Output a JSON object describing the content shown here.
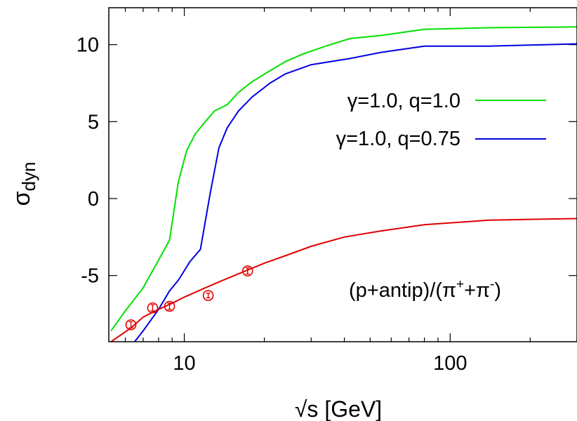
{
  "chart_data": {
    "type": "line",
    "xlabel": "√s [GeV]",
    "ylabel": "σ",
    "ylabel_sub": "dyn",
    "xscale": "log",
    "xlim": [
      5.2,
      300
    ],
    "ylim": [
      -9.3,
      12.4
    ],
    "x_ticks": [
      {
        "value": 10,
        "label": "10"
      },
      {
        "value": 100,
        "label": "100"
      }
    ],
    "y_ticks": [
      {
        "value": 10,
        "label": "10"
      },
      {
        "value": 5,
        "label": "5"
      },
      {
        "value": 0,
        "label": "0"
      },
      {
        "value": -5,
        "label": "-5"
      }
    ],
    "grid": false,
    "legend_position": "top-right",
    "annotation": {
      "prefix": "(p+antip)/(π",
      "sup1": "+",
      "middle": "+π",
      "sup2": "-",
      "suffix": ")"
    },
    "series": [
      {
        "name": "γ=1.0, q=1.0",
        "color": "#00e000",
        "in_legend": true,
        "x": [
          5.3,
          6.0,
          7.0,
          8.0,
          8.8,
          9.5,
          10.2,
          11.0,
          12.0,
          13.0,
          14.5,
          16.0,
          18.0,
          21.0,
          24.0,
          28.0,
          34.0,
          42.0,
          55.0,
          80.0,
          140.0,
          300.0
        ],
        "y": [
          -8.6,
          -7.3,
          -5.8,
          -4.0,
          -2.7,
          1.1,
          3.1,
          4.2,
          5.0,
          5.7,
          6.1,
          6.9,
          7.6,
          8.3,
          8.9,
          9.4,
          9.9,
          10.4,
          10.6,
          11.0,
          11.1,
          11.15
        ]
      },
      {
        "name": "γ=1.0, q=0.75",
        "color": "#0000e0",
        "in_legend": true,
        "x": [
          6.3,
          7.0,
          8.0,
          8.8,
          9.5,
          10.5,
          11.5,
          12.5,
          13.5,
          14.5,
          16.0,
          18.0,
          21.0,
          24.0,
          30.0,
          42.0,
          55.0,
          80.0,
          140.0,
          300.0
        ],
        "y": [
          -9.6,
          -8.6,
          -7.2,
          -6.0,
          -5.3,
          -4.1,
          -3.3,
          0.3,
          3.3,
          4.6,
          5.7,
          6.6,
          7.5,
          8.1,
          8.7,
          9.1,
          9.5,
          9.9,
          9.9,
          10.05
        ]
      },
      {
        "name": "",
        "color": "#e00000",
        "in_legend": false,
        "x": [
          5.2,
          6.3,
          7.0,
          8.0,
          9.0,
          10.0,
          12.0,
          14.0,
          17.0,
          20.0,
          25.0,
          30.0,
          40.0,
          55.0,
          80.0,
          140.0,
          300.0
        ],
        "y": [
          -9.4,
          -8.4,
          -7.7,
          -7.2,
          -6.8,
          -6.4,
          -5.8,
          -5.3,
          -4.7,
          -4.2,
          -3.6,
          -3.1,
          -2.5,
          -2.1,
          -1.7,
          -1.4,
          -1.3
        ]
      }
    ],
    "data_points": {
      "color": "#e00000",
      "x": [
        6.3,
        7.6,
        8.8,
        12.3,
        17.3
      ],
      "y": [
        -8.2,
        -7.1,
        -7.0,
        -6.3,
        -4.7
      ],
      "yerr": [
        0.2,
        0.2,
        0.2,
        0.15,
        0.2
      ]
    }
  }
}
